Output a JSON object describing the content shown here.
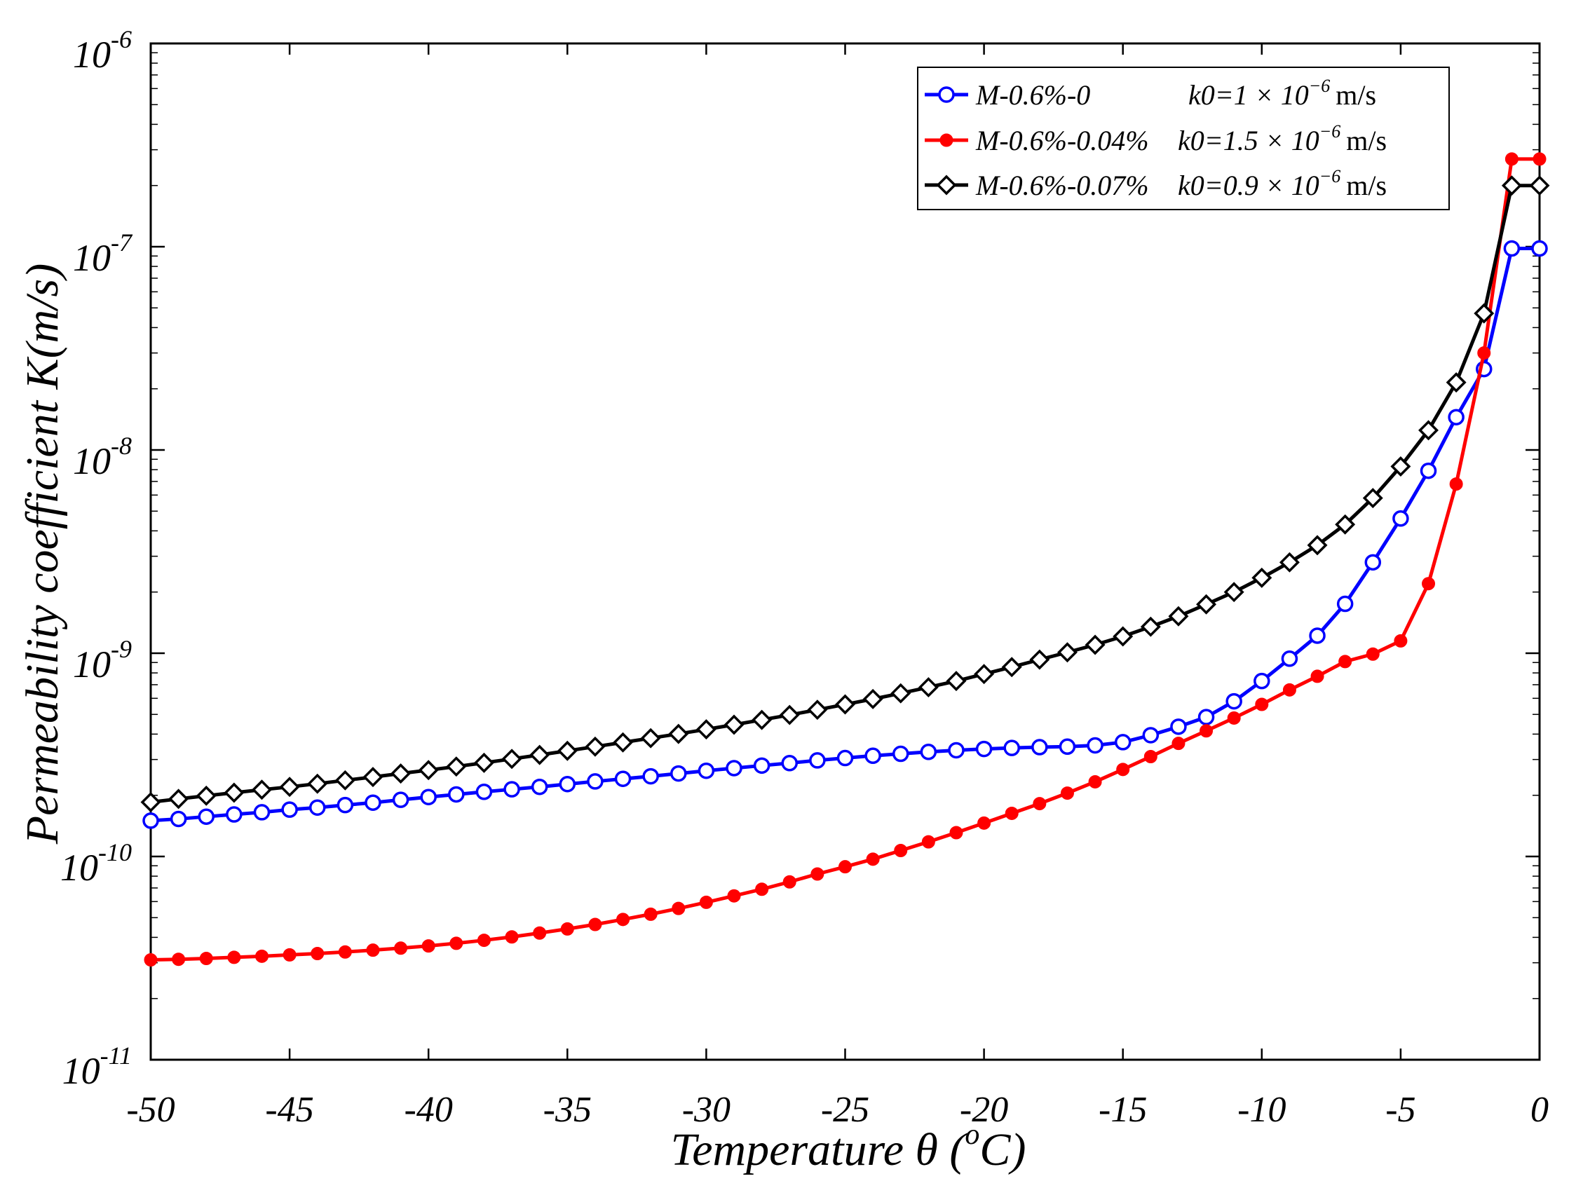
{
  "chart_data": {
    "type": "line",
    "title": "",
    "xlabel": "Temperature θ (°C)",
    "xlabel_parts": {
      "before": "Temperature θ (",
      "sup": "o",
      "after": "C)"
    },
    "ylabel": "Permeability coefficient K(m/s)",
    "xscale": "linear",
    "yscale": "log",
    "xlim": [
      -50,
      0
    ],
    "ylim": [
      1e-11,
      1e-06
    ],
    "x_ticks": [
      -50,
      -45,
      -40,
      -35,
      -30,
      -25,
      -20,
      -15,
      -10,
      -5,
      0
    ],
    "x_tick_labels": [
      "-50",
      "-45",
      "-40",
      "-35",
      "-30",
      "-25",
      "-20",
      "-15",
      "-10",
      "-5",
      "0"
    ],
    "y_ticks": [
      {
        "value": 1e-06,
        "base": "10",
        "exp": "-6"
      },
      {
        "value": 1e-07,
        "base": "10",
        "exp": "-7"
      },
      {
        "value": 1e-08,
        "base": "10",
        "exp": "-8"
      },
      {
        "value": 1e-09,
        "base": "10",
        "exp": "-9"
      },
      {
        "value": 1e-10,
        "base": "10",
        "exp": "-10"
      },
      {
        "value": 1e-11,
        "base": "10",
        "exp": "-11"
      }
    ],
    "grid": false,
    "legend_position": "top-right",
    "x": [
      -50,
      -49,
      -48,
      -47,
      -46,
      -45,
      -44,
      -43,
      -42,
      -41,
      -40,
      -39,
      -38,
      -37,
      -36,
      -35,
      -34,
      -33,
      -32,
      -31,
      -30,
      -29,
      -28,
      -27,
      -26,
      -25,
      -24,
      -23,
      -22,
      -21,
      -20,
      -19,
      -18,
      -17,
      -16,
      -15,
      -14,
      -13,
      -12,
      -11,
      -10,
      -9,
      -8,
      -7,
      -6,
      -5,
      -4,
      -3,
      -2,
      -1,
      0
    ],
    "series": [
      {
        "name": "M-0.6%-0",
        "legend_name": "M-0.6%-0",
        "k0_text": "k0=1 × 10",
        "k0_exp": "−6",
        "unit": "m/s",
        "color": "#0000ff",
        "marker": "circle-open",
        "values": [
          1.5e-10,
          1.53e-10,
          1.57e-10,
          1.61e-10,
          1.65e-10,
          1.7e-10,
          1.74e-10,
          1.79e-10,
          1.84e-10,
          1.9e-10,
          1.96e-10,
          2.02e-10,
          2.08e-10,
          2.14e-10,
          2.2e-10,
          2.27e-10,
          2.34e-10,
          2.41e-10,
          2.48e-10,
          2.56e-10,
          2.64e-10,
          2.72e-10,
          2.8e-10,
          2.88e-10,
          2.97e-10,
          3.05e-10,
          3.13e-10,
          3.2e-10,
          3.27e-10,
          3.33e-10,
          3.38e-10,
          3.42e-10,
          3.45e-10,
          3.47e-10,
          3.52e-10,
          3.65e-10,
          3.95e-10,
          4.35e-10,
          4.85e-10,
          5.8e-10,
          7.3e-10,
          9.4e-10,
          1.22e-09,
          1.75e-09,
          2.8e-09,
          4.6e-09,
          7.9e-09,
          1.45e-08,
          2.5e-08,
          9.8e-08,
          9.8e-08
        ]
      },
      {
        "name": "M-0.6%-0.04%",
        "legend_name": "M-0.6%-0.04%",
        "k0_text": "k0=1.5 × 10",
        "k0_exp": "−6",
        "unit": "m/s",
        "color": "#ff0000",
        "marker": "dot-filled",
        "values": [
          3.1e-11,
          3.12e-11,
          3.15e-11,
          3.19e-11,
          3.23e-11,
          3.28e-11,
          3.33e-11,
          3.39e-11,
          3.46e-11,
          3.54e-11,
          3.63e-11,
          3.74e-11,
          3.87e-11,
          4.02e-11,
          4.2e-11,
          4.4e-11,
          4.63e-11,
          4.9e-11,
          5.2e-11,
          5.55e-11,
          5.95e-11,
          6.4e-11,
          6.9e-11,
          7.5e-11,
          8.2e-11,
          8.9e-11,
          9.7e-11,
          1.07e-10,
          1.18e-10,
          1.31e-10,
          1.46e-10,
          1.63e-10,
          1.82e-10,
          2.05e-10,
          2.33e-10,
          2.68e-10,
          3.1e-10,
          3.6e-10,
          4.15e-10,
          4.8e-10,
          5.6e-10,
          6.6e-10,
          7.7e-10,
          9.1e-10,
          9.9e-10,
          1.15e-09,
          2.2e-09,
          6.8e-09,
          3e-08,
          2.7e-07,
          2.7e-07
        ]
      },
      {
        "name": "M-0.6%-0.07%",
        "legend_name": "M-0.6%-0.07%",
        "k0_text": "k0=0.9 × 10",
        "k0_exp": "−6",
        "unit": "m/s",
        "color": "#000000",
        "marker": "diamond-open",
        "values": [
          1.85e-10,
          1.92e-10,
          1.99e-10,
          2.06e-10,
          2.13e-10,
          2.2e-10,
          2.28e-10,
          2.37e-10,
          2.46e-10,
          2.56e-10,
          2.66e-10,
          2.77e-10,
          2.89e-10,
          3.02e-10,
          3.16e-10,
          3.31e-10,
          3.47e-10,
          3.64e-10,
          3.82e-10,
          4.01e-10,
          4.22e-10,
          4.45e-10,
          4.7e-10,
          4.97e-10,
          5.27e-10,
          5.6e-10,
          5.95e-10,
          6.35e-10,
          6.8e-10,
          7.3e-10,
          7.9e-10,
          8.55e-10,
          9.3e-10,
          1.01e-09,
          1.1e-09,
          1.21e-09,
          1.35e-09,
          1.52e-09,
          1.74e-09,
          2e-09,
          2.35e-09,
          2.8e-09,
          3.4e-09,
          4.3e-09,
          5.8e-09,
          8.3e-09,
          1.25e-08,
          2.15e-08,
          4.7e-08,
          2e-07,
          2e-07
        ]
      }
    ]
  }
}
